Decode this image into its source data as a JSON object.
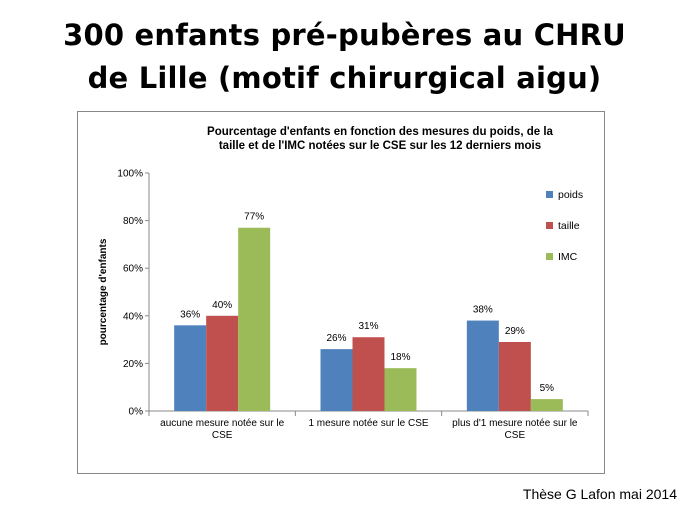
{
  "slide": {
    "title_line1": "300 enfants pré-pubères au CHRU",
    "title_line2": "de Lille (motif chirurgical aigu)",
    "footer": "Thèse G Lafon mai 2014"
  },
  "chart_data": {
    "type": "bar",
    "title": [
      "Pourcentage d'enfants en fonction des mesures du poids, de la",
      "taille et de l'IMC notées sur le CSE sur les 12 derniers mois"
    ],
    "ylabel": "pourcentage d'enfants",
    "xlabel": "",
    "ylim": [
      0,
      100
    ],
    "yticks": [
      "0%",
      "20%",
      "40%",
      "60%",
      "80%",
      "100%"
    ],
    "categories": [
      [
        "aucune mesure notée sur le",
        "CSE"
      ],
      [
        "1 mesure notée sur le CSE"
      ],
      [
        "plus d'1 mesure notée sur le",
        "CSE"
      ]
    ],
    "series": [
      {
        "name": "poids",
        "color": "#4f81bd",
        "values": [
          36,
          26,
          38
        ],
        "labels": [
          "36%",
          "26%",
          "38%"
        ]
      },
      {
        "name": "taille",
        "color": "#c0504d",
        "values": [
          40,
          31,
          29
        ],
        "labels": [
          "40%",
          "31%",
          "29%"
        ]
      },
      {
        "name": "IMC",
        "color": "#9bbb59",
        "values": [
          77,
          18,
          5
        ],
        "labels": [
          "77%",
          "18%",
          "5%"
        ]
      }
    ],
    "grid": false,
    "legend_position": "right"
  }
}
